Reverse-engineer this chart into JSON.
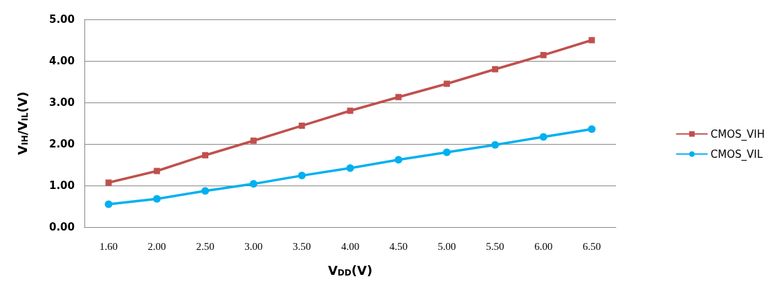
{
  "chart_data": {
    "type": "line",
    "xlabel": "V$_{DD}$(V)",
    "ylabel": "V$_{IH}$/V$_{IL}$(V)",
    "categories": [
      "1.60",
      "2.00",
      "2.50",
      "3.00",
      "3.50",
      "4.00",
      "4.50",
      "5.00",
      "5.50",
      "6.00",
      "6.50"
    ],
    "series": [
      {
        "name": "CMOS_VIH",
        "color": "#c0504d",
        "marker": "square",
        "values": [
          1.07,
          1.35,
          1.73,
          2.08,
          2.44,
          2.8,
          3.13,
          3.45,
          3.8,
          4.14,
          4.5
        ]
      },
      {
        "name": "CMOS_VIL",
        "color": "#00b0f0",
        "marker": "circle",
        "values": [
          0.55,
          0.68,
          0.87,
          1.04,
          1.24,
          1.42,
          1.62,
          1.8,
          1.98,
          2.17,
          2.36
        ]
      }
    ],
    "ylim": [
      0,
      5
    ],
    "yticks": [
      {
        "value": 0,
        "label": "0.00"
      },
      {
        "value": 1,
        "label": "1.00"
      },
      {
        "value": 2,
        "label": "2.00"
      },
      {
        "value": 3,
        "label": "3.00"
      },
      {
        "value": 4,
        "label": "4.00"
      },
      {
        "value": 5,
        "label": "5.00"
      }
    ],
    "grid": "y",
    "legend": "right",
    "line_style": "solid"
  }
}
